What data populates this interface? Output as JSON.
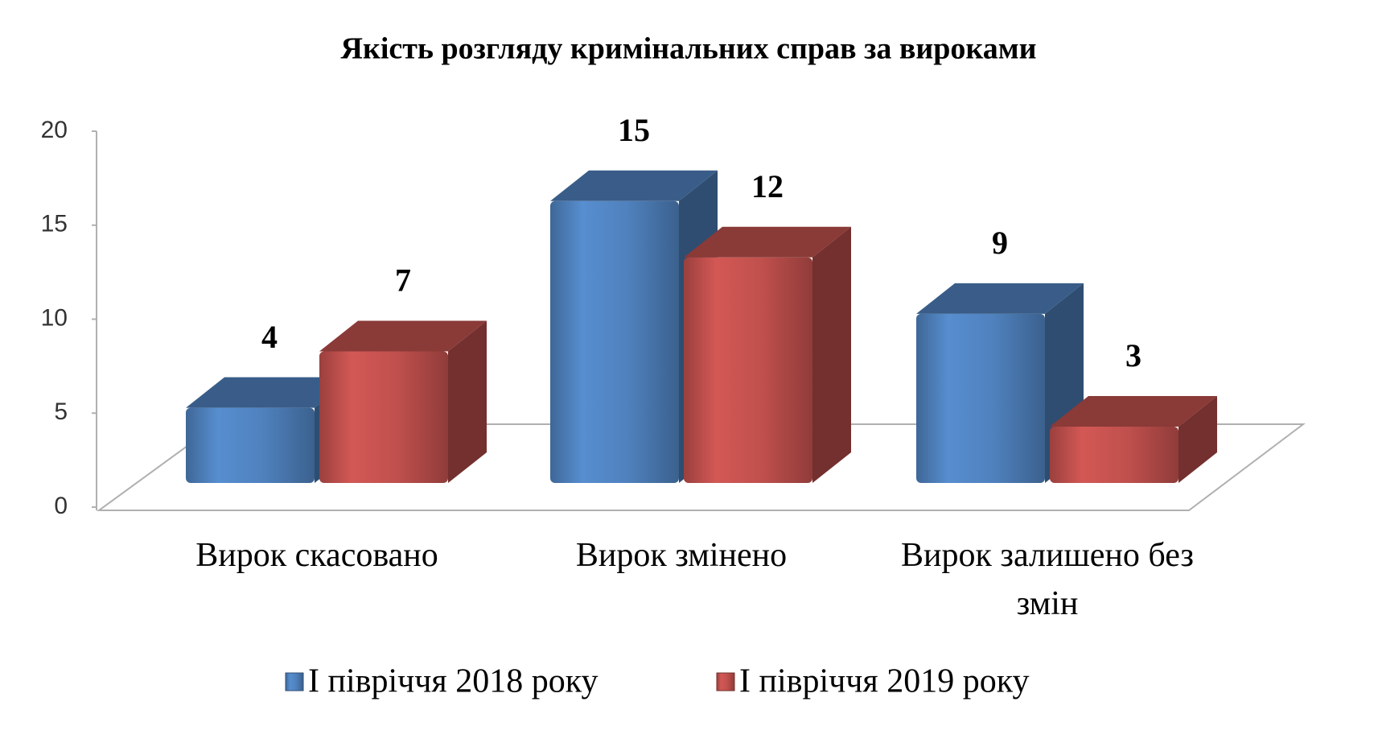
{
  "chart_data": {
    "type": "bar3d",
    "title": "Якість розгляду кримінальних справ за вироками",
    "categories": [
      "Вирок скасовано",
      "Вирок змінено",
      "Вирок залишено без змін"
    ],
    "series": [
      {
        "name": "І півріччя 2018 року",
        "color": "#4f81bd",
        "values": [
          4,
          15,
          9
        ]
      },
      {
        "name": "І півріччя 2019 року",
        "color": "#c0504d",
        "values": [
          7,
          12,
          3
        ]
      }
    ],
    "ylim": [
      0,
      20
    ],
    "yticks": [
      0,
      5,
      10,
      15,
      20
    ]
  }
}
